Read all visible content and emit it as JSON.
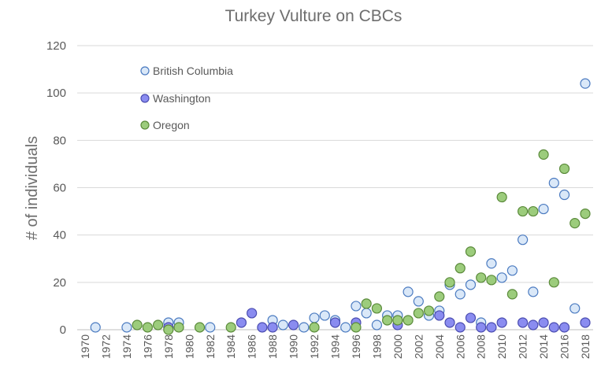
{
  "chart_data": {
    "type": "scatter",
    "title": "Turkey Vulture on CBCs",
    "xlabel": "",
    "ylabel": "# of individuals",
    "xlim": [
      1970,
      2018
    ],
    "ylim": [
      0,
      120
    ],
    "x_ticks": [
      1970,
      1972,
      1974,
      1976,
      1978,
      1980,
      1982,
      1984,
      1986,
      1988,
      1990,
      1992,
      1994,
      1996,
      1998,
      2000,
      2002,
      2004,
      2006,
      2008,
      2010,
      2012,
      2014,
      2016,
      2018
    ],
    "y_ticks": [
      0,
      20,
      40,
      60,
      80,
      100,
      120
    ],
    "grid": true,
    "legend_placement": "top-left",
    "series": [
      {
        "name": "British Columbia",
        "fill": "#dae8f8",
        "stroke": "#4a7ac0",
        "points": [
          [
            1971,
            1
          ],
          [
            1974,
            1
          ],
          [
            1978,
            3
          ],
          [
            1979,
            3
          ],
          [
            1982,
            1
          ],
          [
            1988,
            4
          ],
          [
            1989,
            2
          ],
          [
            1991,
            1
          ],
          [
            1992,
            5
          ],
          [
            1993,
            6
          ],
          [
            1994,
            4
          ],
          [
            1995,
            1
          ],
          [
            1996,
            10
          ],
          [
            1997,
            7
          ],
          [
            1998,
            2
          ],
          [
            1999,
            6
          ],
          [
            2000,
            6
          ],
          [
            2001,
            16
          ],
          [
            2002,
            12
          ],
          [
            2003,
            6
          ],
          [
            2004,
            8
          ],
          [
            2005,
            19
          ],
          [
            2006,
            15
          ],
          [
            2007,
            19
          ],
          [
            2008,
            3
          ],
          [
            2009,
            28
          ],
          [
            2010,
            22
          ],
          [
            2011,
            25
          ],
          [
            2012,
            38
          ],
          [
            2013,
            16
          ],
          [
            2014,
            51
          ],
          [
            2015,
            62
          ],
          [
            2016,
            57
          ],
          [
            2017,
            9
          ],
          [
            2018,
            104
          ]
        ]
      },
      {
        "name": "Washington",
        "fill": "#8a8cf0",
        "stroke": "#4a4cb0",
        "points": [
          [
            1978,
            1
          ],
          [
            1985,
            3
          ],
          [
            1986,
            7
          ],
          [
            1987,
            1
          ],
          [
            1988,
            1
          ],
          [
            1990,
            2
          ],
          [
            1994,
            3
          ],
          [
            1996,
            3
          ],
          [
            2000,
            2
          ],
          [
            2004,
            6
          ],
          [
            2005,
            3
          ],
          [
            2006,
            1
          ],
          [
            2007,
            5
          ],
          [
            2008,
            1
          ],
          [
            2009,
            1
          ],
          [
            2010,
            3
          ],
          [
            2012,
            3
          ],
          [
            2013,
            2
          ],
          [
            2014,
            3
          ],
          [
            2015,
            1
          ],
          [
            2016,
            1
          ],
          [
            2018,
            3
          ]
        ]
      },
      {
        "name": "Oregon",
        "fill": "#9ccc7c",
        "stroke": "#5a8a3a",
        "points": [
          [
            1975,
            2
          ],
          [
            1976,
            1
          ],
          [
            1977,
            2
          ],
          [
            1978,
            0
          ],
          [
            1979,
            1
          ],
          [
            1981,
            1
          ],
          [
            1984,
            1
          ],
          [
            1992,
            1
          ],
          [
            1996,
            1
          ],
          [
            1997,
            11
          ],
          [
            1998,
            9
          ],
          [
            1999,
            4
          ],
          [
            2000,
            4
          ],
          [
            2001,
            4
          ],
          [
            2002,
            7
          ],
          [
            2003,
            8
          ],
          [
            2004,
            14
          ],
          [
            2005,
            20
          ],
          [
            2006,
            26
          ],
          [
            2007,
            33
          ],
          [
            2008,
            22
          ],
          [
            2009,
            21
          ],
          [
            2010,
            56
          ],
          [
            2011,
            15
          ],
          [
            2012,
            50
          ],
          [
            2013,
            50
          ],
          [
            2014,
            74
          ],
          [
            2015,
            20
          ],
          [
            2016,
            68
          ],
          [
            2017,
            45
          ],
          [
            2018,
            49
          ]
        ]
      }
    ]
  }
}
